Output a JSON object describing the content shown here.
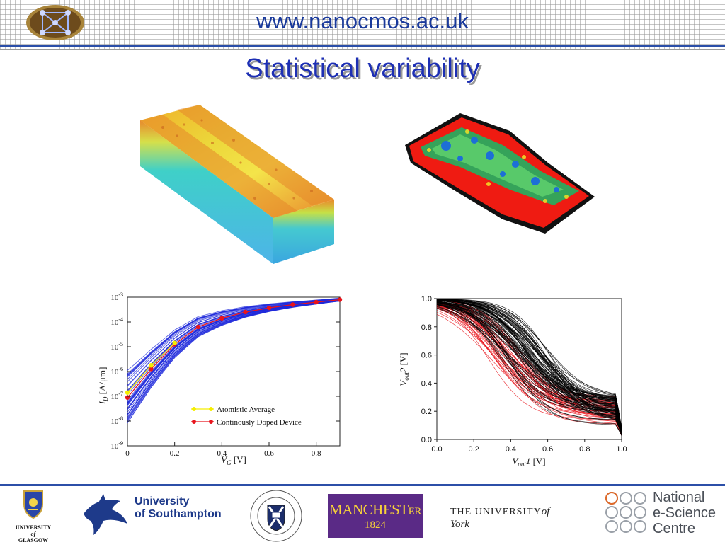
{
  "header": {
    "url": "www.nanocmos.ac.uk"
  },
  "slide": {
    "title": "Statistical variability"
  },
  "chart_data": [
    {
      "type": "line",
      "ylog": true,
      "xlim": [
        0,
        0.9
      ],
      "ylim_exp": [
        -9,
        -3
      ],
      "xlabel_sym": "V",
      "xlabel_sub": "G",
      "xlabel_unit": "[V]",
      "ylabel_sym": "I",
      "ylabel_sub": "D",
      "ylabel_unit": "[A/μm]",
      "xticks": [
        "0",
        "0.2",
        "0.4",
        "0.6",
        "0.8"
      ],
      "yticks": [
        "10",
        "10",
        "10",
        "10",
        "10",
        "10",
        "10"
      ],
      "ytick_exps": [
        "-9",
        "-8",
        "-7",
        "-6",
        "-5",
        "-4",
        "-3"
      ],
      "legend": [
        "Atomistic Average",
        "Continously Doped Device"
      ],
      "series": [
        {
          "name": "Atomistic Average",
          "color": "#f5ee00",
          "x": [
            0,
            0.1,
            0.2
          ],
          "y_log10": [
            -6.85,
            -5.75,
            -4.85
          ]
        },
        {
          "name": "Continously Doped Device",
          "color": "#e8141c",
          "x": [
            0,
            0.1,
            0.2,
            0.3,
            0.4,
            0.5,
            0.6,
            0.7,
            0.8,
            0.9
          ],
          "y_log10": [
            -7.05,
            -5.9,
            -4.9,
            -4.2,
            -3.85,
            -3.6,
            -3.43,
            -3.3,
            -3.2,
            -3.1
          ]
        }
      ],
      "ensemble": {
        "color": "#1f2adb",
        "count": 45,
        "description_hidden": true
      }
    },
    {
      "type": "line",
      "xlim": [
        0,
        1.0
      ],
      "ylim": [
        0,
        1.0
      ],
      "xticks": [
        "0.0",
        "0.2",
        "0.4",
        "0.6",
        "0.8",
        "1.0"
      ],
      "yticks": [
        "0.0",
        "0.2",
        "0.4",
        "0.6",
        "0.8",
        "1.0"
      ],
      "xlabel_sym": "V",
      "xlabel_sub": "out",
      "xlabel_num": "1",
      "xlabel_unit": "[V]",
      "ylabel_sym": "V",
      "ylabel_sub": "out",
      "ylabel_num": "2",
      "ylabel_unit": "[V]",
      "series": [
        {
          "name": "",
          "color": "#e8141c",
          "count": 40,
          "x_mid_range": [
            0.27,
            0.46
          ]
        },
        {
          "name": "",
          "color": "#000000",
          "count": 80,
          "x_mid_range": [
            0.35,
            0.62
          ]
        }
      ]
    }
  ],
  "footer": {
    "glasgow": [
      "UNIVERSITY",
      "of",
      "GLASGOW"
    ],
    "southampton": [
      "University",
      "of Southampton"
    ],
    "manchester": [
      "MANCHEST",
      "ER",
      "1824"
    ],
    "york": [
      "THE UNIVERSITY",
      "of York"
    ],
    "escience": [
      "National",
      "e-Science",
      "Centre"
    ]
  },
  "colors": {
    "title": "#1d2fb4",
    "url": "#1a3a9c",
    "rule": "#2c4fa8"
  }
}
